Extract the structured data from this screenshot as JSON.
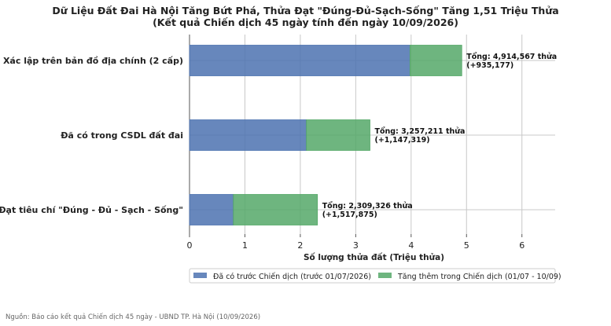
{
  "chart_data": {
    "type": "bar",
    "orientation": "horizontal",
    "stacked": true,
    "title": "Dữ Liệu Đất Đai Hà Nội Tăng Bứt Phá, Thửa Đạt \"Đúng-Đủ-Sạch-Sống\" Tăng 1,51 Triệu Thửa",
    "subtitle": "(Kết quả Chiến dịch 45 ngày tính đến ngày 10/09/2026)",
    "xlabel": "Số lượng thửa đất (Triệu thửa)",
    "ylabel": "",
    "xlim": [
      0,
      6.6
    ],
    "xticks": [
      0,
      1,
      2,
      3,
      4,
      5,
      6
    ],
    "grid": true,
    "legend_position": "bottom",
    "categories": [
      "Xác lập trên bản đồ địa chính (2 cấp)",
      "Đã có trong CSDL đất đai",
      "Đạt tiêu chí \"Đúng - Đủ - Sạch - Sống\""
    ],
    "series": [
      {
        "name": "Đã có trước Chiến dịch (trước 01/07/2026)",
        "color": "#4c72b0",
        "values": [
          3.97939,
          2.109892,
          0.791451
        ]
      },
      {
        "name": "Tăng thêm trong Chiến dịch (01/07 - 10/09)",
        "color": "#55a868",
        "values": [
          0.935177,
          1.147319,
          1.517875
        ]
      }
    ],
    "annotations": [
      {
        "line1": "Tổng: 4,914,567 thửa",
        "line2": "(+935,177)"
      },
      {
        "line1": "Tổng: 3,257,211 thửa",
        "line2": "(+1,147,319)"
      },
      {
        "line1": "Tổng: 2,309,326 thửa",
        "line2": "(+1,517,875)"
      }
    ]
  },
  "source_note": "Nguồn: Báo cáo kết quả Chiến dịch 45 ngày - UBND TP. Hà Nội (10/09/2026)"
}
